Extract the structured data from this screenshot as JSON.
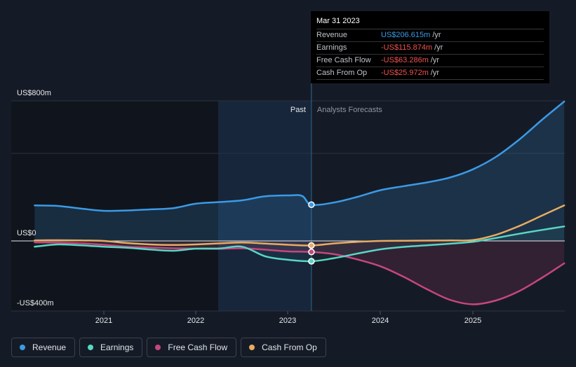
{
  "chart_data": {
    "type": "line",
    "title": "",
    "y_axis_labels": [
      "US$800m",
      "US$0",
      "-US$400m"
    ],
    "ylim": [
      -400,
      800
    ],
    "x_ticks": [
      "2021",
      "2022",
      "2023",
      "2024",
      "2025"
    ],
    "regions": {
      "past_label": "Past",
      "forecast_label": "Analysts Forecasts"
    },
    "colors": {
      "revenue": "#3b9ae6",
      "earnings": "#59d6c4",
      "fcf": "#c7467f",
      "cfo": "#e8ac62"
    },
    "series": [
      {
        "key": "revenue",
        "name": "Revenue",
        "points": [
          [
            2020.25,
            203
          ],
          [
            2020.5,
            200
          ],
          [
            2020.75,
            185
          ],
          [
            2021.0,
            172
          ],
          [
            2021.25,
            174
          ],
          [
            2021.5,
            180
          ],
          [
            2021.75,
            187
          ],
          [
            2022.0,
            213
          ],
          [
            2022.25,
            222
          ],
          [
            2022.5,
            232
          ],
          [
            2022.75,
            255
          ],
          [
            2023.0,
            260
          ],
          [
            2023.15,
            257
          ],
          [
            2023.25,
            207
          ],
          [
            2023.5,
            220
          ],
          [
            2023.75,
            252
          ],
          [
            2024.0,
            290
          ],
          [
            2024.25,
            313
          ],
          [
            2024.5,
            334
          ],
          [
            2024.75,
            362
          ],
          [
            2025.0,
            409
          ],
          [
            2025.25,
            480
          ],
          [
            2025.5,
            578
          ],
          [
            2025.75,
            692
          ],
          [
            2025.99,
            796
          ]
        ]
      },
      {
        "key": "earnings",
        "name": "Earnings",
        "points": [
          [
            2020.25,
            -33
          ],
          [
            2020.5,
            -20
          ],
          [
            2020.75,
            -25
          ],
          [
            2021.0,
            -33
          ],
          [
            2021.25,
            -39
          ],
          [
            2021.5,
            -49
          ],
          [
            2021.75,
            -56
          ],
          [
            2022.0,
            -44
          ],
          [
            2022.25,
            -43
          ],
          [
            2022.5,
            -33
          ],
          [
            2022.75,
            -88
          ],
          [
            2023.0,
            -108
          ],
          [
            2023.25,
            -116
          ],
          [
            2023.5,
            -98
          ],
          [
            2023.75,
            -72
          ],
          [
            2024.0,
            -48
          ],
          [
            2024.25,
            -34
          ],
          [
            2024.5,
            -25
          ],
          [
            2024.75,
            -16
          ],
          [
            2025.0,
            -5
          ],
          [
            2025.25,
            17
          ],
          [
            2025.5,
            41
          ],
          [
            2025.75,
            63
          ],
          [
            2025.99,
            83
          ]
        ]
      },
      {
        "key": "fcf",
        "name": "Free Cash Flow",
        "points": [
          [
            2020.25,
            -8
          ],
          [
            2020.5,
            -10
          ],
          [
            2020.75,
            -14
          ],
          [
            2021.0,
            -22
          ],
          [
            2021.25,
            -33
          ],
          [
            2021.5,
            -38
          ],
          [
            2021.75,
            -42
          ],
          [
            2022.0,
            -44
          ],
          [
            2022.25,
            -45
          ],
          [
            2022.5,
            -42
          ],
          [
            2022.75,
            -50
          ],
          [
            2023.0,
            -60
          ],
          [
            2023.25,
            -63
          ],
          [
            2023.5,
            -76
          ],
          [
            2023.75,
            -106
          ],
          [
            2024.0,
            -145
          ],
          [
            2024.25,
            -205
          ],
          [
            2024.5,
            -275
          ],
          [
            2024.75,
            -336
          ],
          [
            2025.0,
            -362
          ],
          [
            2025.25,
            -340
          ],
          [
            2025.5,
            -287
          ],
          [
            2025.75,
            -210
          ],
          [
            2025.99,
            -128
          ]
        ]
      },
      {
        "key": "cfo",
        "name": "Cash From Op",
        "points": [
          [
            2020.25,
            3
          ],
          [
            2020.5,
            4
          ],
          [
            2020.75,
            3
          ],
          [
            2021.0,
            0
          ],
          [
            2021.25,
            -12
          ],
          [
            2021.5,
            -20
          ],
          [
            2021.75,
            -23
          ],
          [
            2022.0,
            -20
          ],
          [
            2022.25,
            -14
          ],
          [
            2022.5,
            -9
          ],
          [
            2022.75,
            -15
          ],
          [
            2023.0,
            -22
          ],
          [
            2023.25,
            -26
          ],
          [
            2023.5,
            -14
          ],
          [
            2023.75,
            -5
          ],
          [
            2024.0,
            0
          ],
          [
            2024.25,
            1
          ],
          [
            2024.5,
            2
          ],
          [
            2024.75,
            3
          ],
          [
            2025.0,
            5
          ],
          [
            2025.25,
            35
          ],
          [
            2025.5,
            85
          ],
          [
            2025.75,
            145
          ],
          [
            2025.99,
            203
          ]
        ]
      }
    ]
  },
  "tooltip": {
    "date": "Mar 31 2023",
    "rows": [
      {
        "label": "Revenue",
        "value": "US$206.615m",
        "unit": "/yr"
      },
      {
        "label": "Earnings",
        "value": "-US$115.874m",
        "unit": "/yr"
      },
      {
        "label": "Free Cash Flow",
        "value": "-US$63.286m",
        "unit": "/yr"
      },
      {
        "label": "Cash From Op",
        "value": "-US$25.972m",
        "unit": "/yr"
      }
    ]
  },
  "legend": [
    {
      "label": "Revenue",
      "color": "#3b9ae6"
    },
    {
      "label": "Earnings",
      "color": "#59d6c4"
    },
    {
      "label": "Free Cash Flow",
      "color": "#c7467f"
    },
    {
      "label": "Cash From Op",
      "color": "#e8ac62"
    }
  ]
}
